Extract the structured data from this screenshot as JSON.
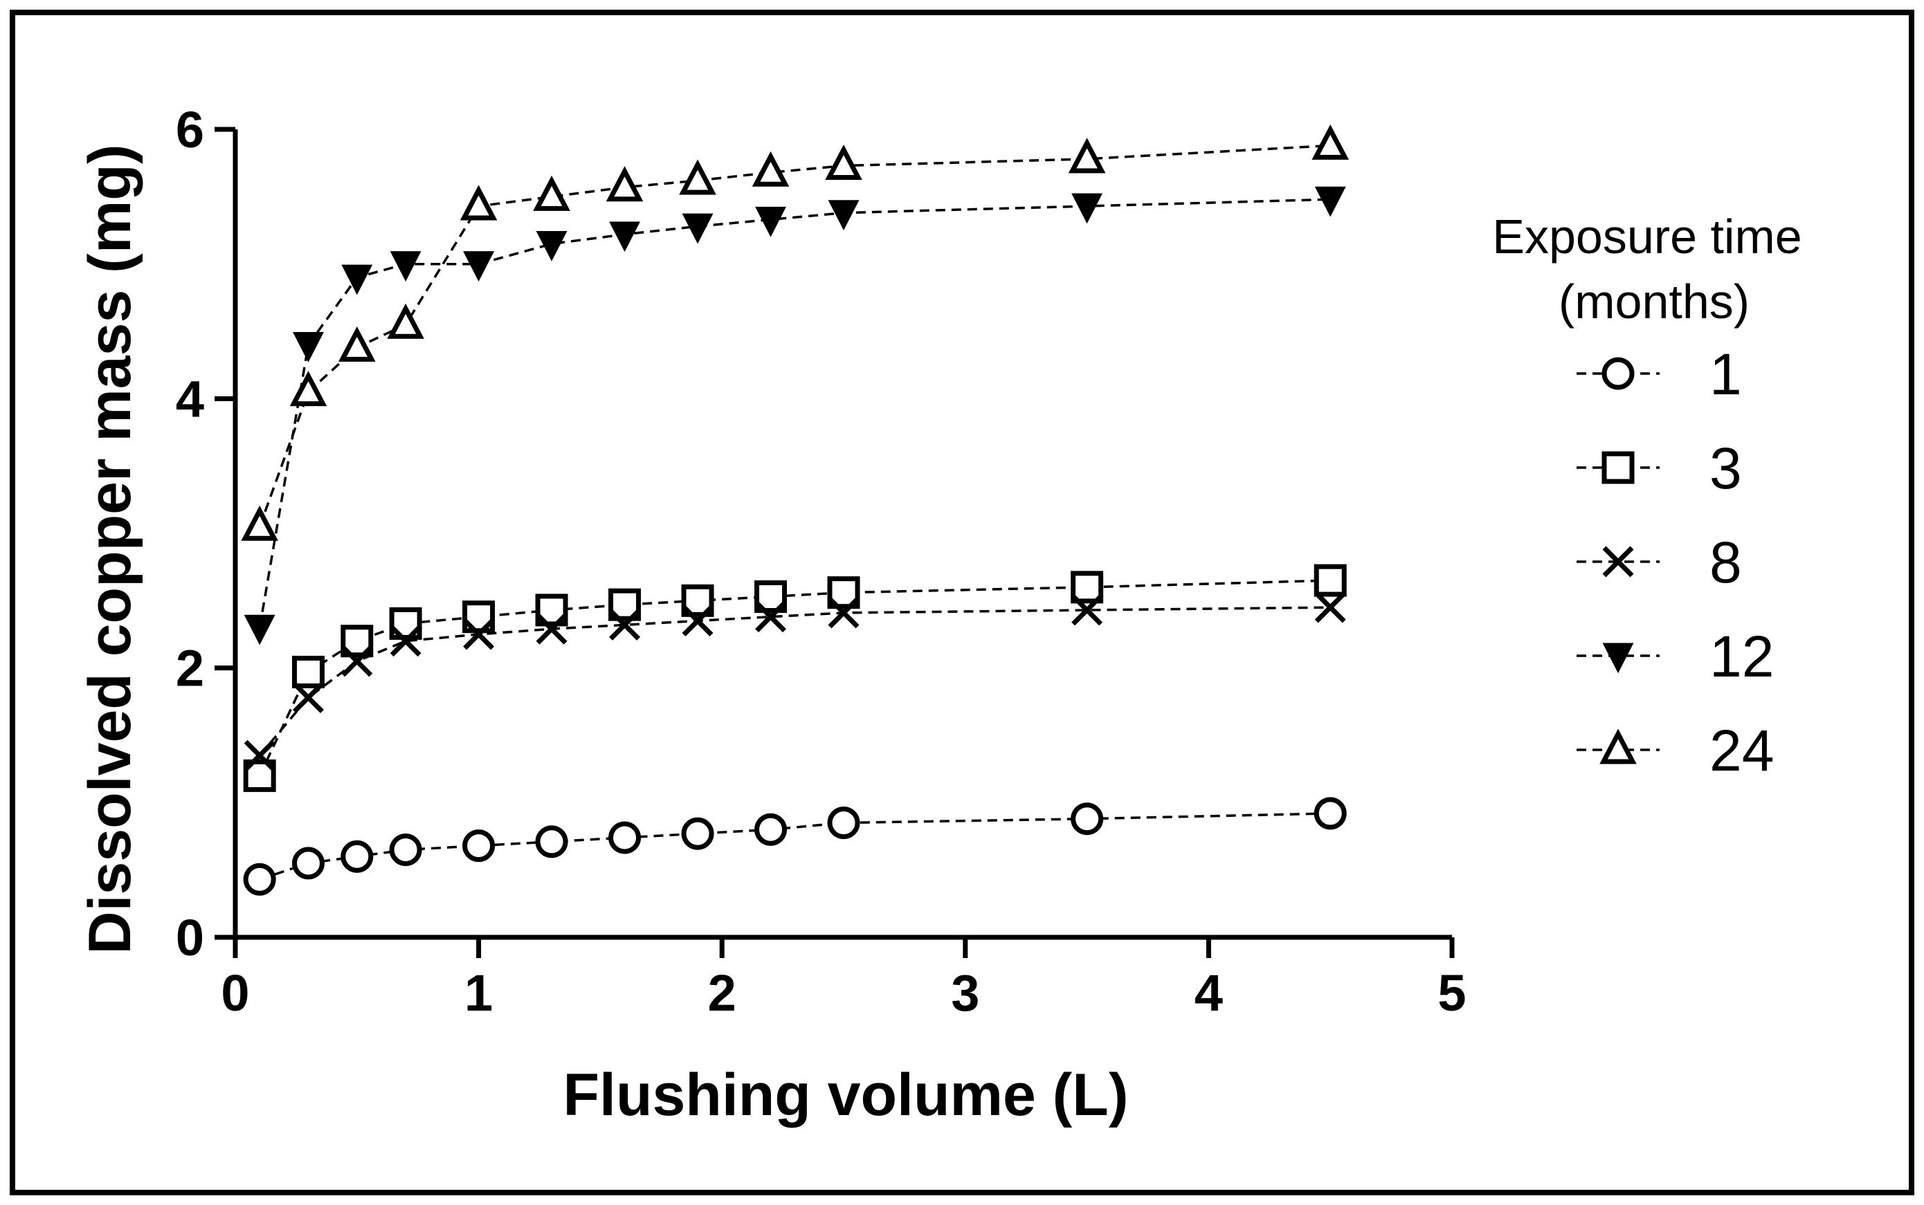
{
  "chart_data": {
    "type": "line",
    "title": "",
    "xlabel": "Flushing volume (L)",
    "ylabel": "Dissolved copper mass (mg)",
    "xlim": [
      0,
      5
    ],
    "ylim": [
      0,
      6
    ],
    "x_ticks": [
      "0",
      "1",
      "2",
      "3",
      "4",
      "5"
    ],
    "y_ticks": [
      "0",
      "2",
      "4",
      "6"
    ],
    "grid": false,
    "legend_title_line1": "Exposure time",
    "legend_title_line2": "(months)",
    "legend_position": "right",
    "series": [
      {
        "name": "1",
        "marker": "circle",
        "x": [
          0.1,
          0.3,
          0.5,
          0.7,
          1.0,
          1.3,
          1.6,
          1.9,
          2.2,
          2.5,
          3.5,
          4.5
        ],
        "y": [
          0.43,
          0.55,
          0.6,
          0.65,
          0.68,
          0.71,
          0.74,
          0.77,
          0.8,
          0.85,
          0.88,
          0.92
        ]
      },
      {
        "name": "3",
        "marker": "square",
        "x": [
          0.1,
          0.3,
          0.5,
          0.7,
          1.0,
          1.3,
          1.6,
          1.9,
          2.2,
          2.5,
          3.5,
          4.5
        ],
        "y": [
          1.2,
          1.97,
          2.2,
          2.33,
          2.38,
          2.43,
          2.47,
          2.5,
          2.53,
          2.56,
          2.6,
          2.65
        ]
      },
      {
        "name": "8",
        "marker": "x",
        "x": [
          0.1,
          0.3,
          0.5,
          0.7,
          1.0,
          1.3,
          1.6,
          1.9,
          2.2,
          2.5,
          3.5,
          4.5
        ],
        "y": [
          1.35,
          1.78,
          2.05,
          2.2,
          2.25,
          2.29,
          2.32,
          2.35,
          2.38,
          2.41,
          2.43,
          2.45
        ]
      },
      {
        "name": "12",
        "marker": "triangle-down",
        "x": [
          0.1,
          0.3,
          0.5,
          0.7,
          1.0,
          1.3,
          1.6,
          1.9,
          2.2,
          2.5,
          3.5,
          4.5
        ],
        "y": [
          2.3,
          4.4,
          4.9,
          5.0,
          5.0,
          5.15,
          5.22,
          5.28,
          5.33,
          5.38,
          5.43,
          5.48
        ]
      },
      {
        "name": "24",
        "marker": "triangle-up",
        "x": [
          0.1,
          0.3,
          0.5,
          0.7,
          1.0,
          1.3,
          1.6,
          1.9,
          2.2,
          2.5,
          3.5,
          4.5
        ],
        "y": [
          3.05,
          4.05,
          4.38,
          4.55,
          5.43,
          5.5,
          5.57,
          5.62,
          5.68,
          5.73,
          5.78,
          5.88
        ]
      }
    ]
  }
}
